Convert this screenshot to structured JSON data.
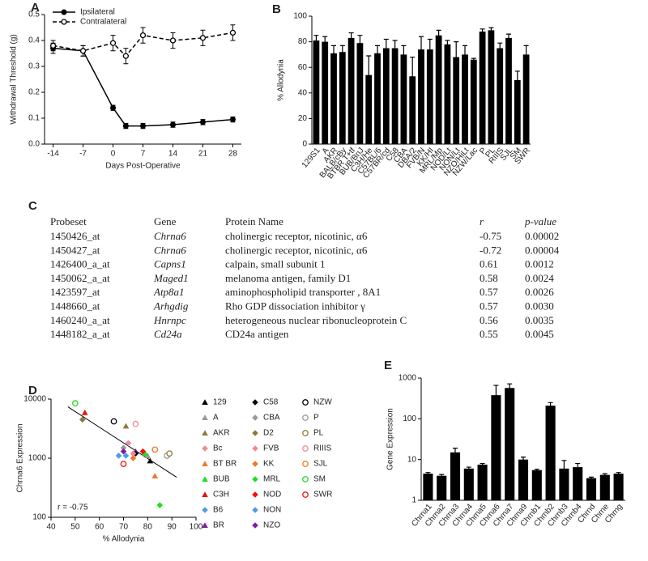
{
  "chart_data": [
    {
      "type": "line",
      "panel": "A",
      "xlabel": "Days Post-Operative",
      "ylabel": "Withdrawal Threshold (g)",
      "x": [
        -14,
        -7,
        0,
        3,
        7,
        14,
        21,
        28
      ],
      "xlim": [
        -16,
        30
      ],
      "xticks": [
        -14,
        -7,
        0,
        7,
        14,
        21,
        28
      ],
      "ylim": [
        0,
        0.5
      ],
      "yticks": [
        {
          "value": 0,
          "label": "0.0"
        },
        0.1,
        0.2,
        0.3,
        0.4,
        0.5
      ],
      "legend": "upper left",
      "series": [
        {
          "name": "Ipsilateral",
          "color": "#000000",
          "marker": "circle",
          "dash": false,
          "values": [
            0.37,
            0.36,
            0.14,
            0.07,
            0.07,
            0.075,
            0.085,
            0.095
          ],
          "errors": [
            0.02,
            0.02,
            0.01,
            0.01,
            0.01,
            0.01,
            0.01,
            0.01
          ]
        },
        {
          "name": "Contralateral",
          "color": "#000000",
          "marker": "circle-open",
          "dash": true,
          "values": [
            0.38,
            0.36,
            0.39,
            0.34,
            0.42,
            0.4,
            0.41,
            0.43
          ],
          "errors": [
            0.02,
            0.02,
            0.03,
            0.03,
            0.03,
            0.03,
            0.03,
            0.03
          ]
        }
      ]
    },
    {
      "type": "bar",
      "panel": "B",
      "ylabel": "% Allodynia",
      "color": "#000000",
      "ylog": false,
      "categories": [
        "129S1",
        "A",
        "AKR",
        "BALB/cBy",
        "BTBR T+tf",
        "BUB/BnJ",
        "C3H/He",
        "C57BL/6",
        "C57BR/cd",
        "C58",
        "CBA",
        "DBA/2",
        "FVB/N",
        "KK/HI",
        "MRL/Mp",
        "NOD/Lt",
        "NON/Lt",
        "NZO/HiLt",
        "NZW/Lac",
        "P",
        "PL",
        "RIIIS",
        "SJL",
        "SM",
        "SWR"
      ],
      "values": [
        81,
        80,
        71,
        72,
        83,
        79,
        54,
        71,
        75,
        75,
        70,
        53,
        74,
        74,
        85,
        78,
        68,
        70,
        66,
        88,
        89,
        75,
        83,
        50,
        70
      ],
      "errors": [
        4,
        4,
        6,
        5,
        4,
        6,
        15,
        6,
        7,
        6,
        7,
        15,
        10,
        8,
        4,
        3,
        12,
        7,
        1,
        2,
        2,
        4,
        3,
        7,
        7
      ],
      "ylim": [
        0,
        100
      ],
      "yticks": [
        0,
        20,
        40,
        60,
        80,
        100
      ]
    },
    {
      "type": "scatter",
      "panel": "D",
      "xlabel": "% Allodynia",
      "ylabel": "Chrna6 Expression",
      "annotation": "r = -0.75",
      "ylog": true,
      "xlim": [
        40,
        100
      ],
      "xticks": [
        40,
        50,
        60,
        70,
        80,
        90,
        100
      ],
      "ylim": [
        100,
        10000
      ],
      "yticks": [
        100,
        1000,
        10000
      ],
      "trendline": true,
      "series": [
        {
          "name": "129",
          "color": "#000000",
          "marker": "triangle",
          "x": [
            81
          ],
          "values": [
            900
          ]
        },
        {
          "name": "A",
          "color": "#999999",
          "marker": "triangle",
          "x": [
            80
          ],
          "values": [
            1100
          ]
        },
        {
          "name": "AKR",
          "color": "#8c7a3c",
          "marker": "triangle",
          "x": [
            71
          ],
          "values": [
            3500
          ]
        },
        {
          "name": "Bc",
          "color": "#f08a9a",
          "marker": "diamond",
          "x": [
            72
          ],
          "values": [
            1800
          ]
        },
        {
          "name": "BT BR",
          "color": "#f07828",
          "marker": "triangle",
          "x": [
            83
          ],
          "values": [
            500
          ]
        },
        {
          "name": "BUB",
          "color": "#22dd22",
          "marker": "triangle",
          "x": [
            79
          ],
          "values": [
            1200
          ]
        },
        {
          "name": "C3H",
          "color": "#ee1111",
          "marker": "triangle",
          "x": [
            54
          ],
          "values": [
            5900
          ]
        },
        {
          "name": "B6",
          "color": "#4f9be8",
          "marker": "diamond",
          "x": [
            71
          ],
          "values": [
            1100
          ]
        },
        {
          "name": "BR",
          "color": "#7a1fa2",
          "marker": "triangle",
          "x": [
            75
          ],
          "values": [
            1300
          ]
        },
        {
          "name": "C58",
          "color": "#000000",
          "marker": "diamond",
          "x": [
            75
          ],
          "values": [
            1200
          ]
        },
        {
          "name": "CBA",
          "color": "#999999",
          "marker": "diamond",
          "x": [
            70
          ],
          "values": [
            1500
          ]
        },
        {
          "name": "D2",
          "color": "#8c7a3c",
          "marker": "diamond",
          "x": [
            53
          ],
          "values": [
            4500
          ]
        },
        {
          "name": "FVB",
          "color": "#f08a9a",
          "marker": "diamond",
          "x": [
            74
          ],
          "values": [
            1200
          ]
        },
        {
          "name": "KK",
          "color": "#f07828",
          "marker": "diamond",
          "x": [
            74
          ],
          "values": [
            1000
          ]
        },
        {
          "name": "MRL",
          "color": "#22dd22",
          "marker": "diamond",
          "x": [
            85
          ],
          "values": [
            160
          ]
        },
        {
          "name": "NOD",
          "color": "#ee1111",
          "marker": "diamond",
          "x": [
            78
          ],
          "values": [
            1300
          ]
        },
        {
          "name": "NON",
          "color": "#4f9be8",
          "marker": "diamond",
          "x": [
            68
          ],
          "values": [
            1100
          ]
        },
        {
          "name": "NZO",
          "color": "#7a1fa2",
          "marker": "diamond",
          "x": [
            70
          ],
          "values": [
            1300
          ]
        },
        {
          "name": "NZW",
          "color": "#000000",
          "marker": "circle-open",
          "x": [
            66
          ],
          "values": [
            4200
          ]
        },
        {
          "name": "P",
          "color": "#999999",
          "marker": "circle-open",
          "x": [
            88
          ],
          "values": [
            1100
          ]
        },
        {
          "name": "PL",
          "color": "#8c7a3c",
          "marker": "circle-open",
          "x": [
            89
          ],
          "values": [
            1200
          ]
        },
        {
          "name": "RIIIS",
          "color": "#f08a9a",
          "marker": "circle-open",
          "x": [
            75
          ],
          "values": [
            3800
          ]
        },
        {
          "name": "SJL",
          "color": "#f07828",
          "marker": "circle-open",
          "x": [
            83
          ],
          "values": [
            1400
          ]
        },
        {
          "name": "SM",
          "color": "#22dd22",
          "marker": "circle-open",
          "x": [
            50
          ],
          "values": [
            8500
          ]
        },
        {
          "name": "SWR",
          "color": "#ee1111",
          "marker": "circle-open",
          "x": [
            70
          ],
          "values": [
            800
          ]
        }
      ]
    },
    {
      "type": "bar",
      "panel": "E",
      "ylabel": "Gene Expression",
      "color": "#000000",
      "ylog": true,
      "categories": [
        "Chrna1",
        "Chrna2",
        "Chrna3",
        "Chrna4",
        "Chrna5",
        "Chrna6",
        "Chrna7",
        "Chrna9",
        "Chrnb1",
        "Chrnb2",
        "Chrnb3",
        "Chrnb4",
        "Chrnd",
        "Chrne",
        "Chrng"
      ],
      "values": [
        4.5,
        4,
        15,
        6,
        7.5,
        380,
        570,
        10,
        5.5,
        210,
        6,
        6.5,
        3.5,
        4.2,
        4.5
      ],
      "errors": [
        0.3,
        0.3,
        4,
        0.5,
        0.5,
        280,
        150,
        1.5,
        0.3,
        40,
        3.5,
        1.5,
        0.2,
        0.3,
        0.3
      ],
      "ylim": [
        1,
        1000
      ],
      "yticks": [
        1,
        10,
        100,
        1000
      ]
    }
  ],
  "table": {
    "panel": "C",
    "header": [
      "Probeset",
      "Gene",
      "Protein Name",
      "r",
      "p-value"
    ],
    "rows": [
      [
        "1450426_at",
        "Chrna6",
        "cholinergic receptor, nicotinic,  α6",
        "-0.75",
        "0.00002"
      ],
      [
        "1450427_at",
        "Chrna6",
        "cholinergic receptor, nicotinic,  α6",
        "-0.72",
        "0.00004"
      ],
      [
        "1426400_a_at",
        "Capns1",
        "calpain, small subunit 1",
        "0.61",
        "0.0012"
      ],
      [
        "1450062_a_at",
        "Maged1",
        "melanoma antigen, family D1",
        "0.58",
        "0.0024"
      ],
      [
        "1423597_at",
        "Atp8a1",
        "aminophospholipid transporter , 8A1",
        "0.57",
        "0.0026"
      ],
      [
        "1448660_at",
        "Arhgdig",
        "Rho GDP dissociation inhibitor  γ",
        "0.57",
        "0.0030"
      ],
      [
        "1460240_a_at",
        "Hnrnpc",
        "heterogeneous nuclear ribonucleoprotein  C",
        "0.56",
        "0.0035"
      ],
      [
        "1448182_a_at",
        "Cd24a",
        "CD24a antigen",
        "0.55",
        "0.0045"
      ]
    ]
  }
}
